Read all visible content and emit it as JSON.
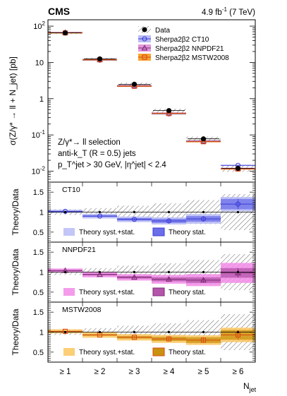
{
  "header": {
    "experiment": "CMS",
    "luminosity": "4.9 fb",
    "lumi_exp": "-1",
    "energy": "(7 TeV)"
  },
  "chart_data": [
    {
      "type": "line",
      "panel": "main",
      "yscale": "log",
      "ylim": [
        0.005,
        150
      ],
      "ylabel": "σ(Z/γ* → ll + N_jet) [pb]",
      "categories": [
        "≥ 1",
        "≥ 2",
        "≥ 3",
        "≥ 4",
        "≥ 5",
        "≥ 6"
      ],
      "y_ticks": [
        "10^-2",
        "10^-1",
        "1",
        "10",
        "10^2"
      ],
      "series": [
        {
          "name": "Data",
          "marker": "filled-circle",
          "color": "#000000",
          "values": [
            65,
            12.5,
            2.5,
            0.47,
            0.078,
            0.012
          ],
          "band_rel": [
            0.07,
            0.08,
            0.1,
            0.12,
            0.15,
            0.2
          ]
        },
        {
          "name": "Sherpa2β2 CT10",
          "marker": "open-circle",
          "color": "#3b3bd6",
          "band": "#b9bcf5",
          "values": [
            66,
            11.5,
            2.2,
            0.38,
            0.066,
            0.0145
          ]
        },
        {
          "name": "Sherpa2β2 NNPDF21",
          "marker": "open-triangle",
          "color": "#7d2a75",
          "band": "#e296dc",
          "values": [
            67,
            12.0,
            2.3,
            0.4,
            0.068,
            0.012
          ]
        },
        {
          "name": "Sherpa2β2 MSTW2008",
          "marker": "open-square",
          "color": "#d94a10",
          "band": "#f7a531",
          "values": [
            65,
            11.8,
            2.2,
            0.39,
            0.065,
            0.0115
          ]
        }
      ],
      "annotations": [
        "Z/γ*→ ll selection",
        "anti-k_T (R = 0.5) jets",
        "p_T^jet > 30 GeV, |η^jet| < 2.4"
      ]
    },
    {
      "type": "line",
      "panel": "ratio",
      "title": "CT10",
      "ylabel": "Theory/Data",
      "ylim": [
        0.25,
        1.75
      ],
      "y_ticks": [
        "0.5",
        "1",
        "1.5"
      ],
      "values": [
        1.02,
        0.9,
        0.82,
        0.78,
        0.83,
        1.2
      ],
      "syst_band": [
        0.04,
        0.06,
        0.07,
        0.09,
        0.12,
        0.18
      ],
      "stat_band": [
        0.01,
        0.02,
        0.03,
        0.05,
        0.07,
        0.13
      ],
      "data_band": [
        0.07,
        0.1,
        0.16,
        0.22,
        0.3,
        0.45
      ],
      "legend": [
        "Theory syst.+stat.",
        "Theory stat."
      ],
      "fill_color": "#b9bcf5",
      "stat_color": "#6a6ee8",
      "line_color": "#3b3bd6",
      "marker": "open-circle"
    },
    {
      "type": "line",
      "panel": "ratio",
      "title": "NNPDF21",
      "ylabel": "Theory/Data",
      "ylim": [
        0.25,
        1.75
      ],
      "y_ticks": [
        "0.5",
        "1",
        "1.5"
      ],
      "values": [
        1.04,
        0.94,
        0.87,
        0.82,
        0.8,
        0.98
      ],
      "syst_band": [
        0.05,
        0.07,
        0.08,
        0.11,
        0.15,
        0.25
      ],
      "stat_band": [
        0.01,
        0.02,
        0.03,
        0.05,
        0.07,
        0.12
      ],
      "data_band": [
        0.07,
        0.1,
        0.16,
        0.22,
        0.3,
        0.45
      ],
      "legend": [
        "Theory syst.+stat.",
        "Theory stat."
      ],
      "fill_color": "#f28be8",
      "stat_color": "#b455aa",
      "line_color": "#7d2a75",
      "marker": "open-triangle"
    },
    {
      "type": "line",
      "panel": "ratio",
      "title": "MSTW2008",
      "ylabel": "Theory/Data",
      "ylim": [
        0.25,
        1.75
      ],
      "y_ticks": [
        "0.5",
        "1",
        "1.5"
      ],
      "values": [
        1.02,
        0.93,
        0.87,
        0.83,
        0.8,
        0.93
      ],
      "syst_band": [
        0.05,
        0.07,
        0.08,
        0.1,
        0.12,
        0.18
      ],
      "stat_band": [
        0.01,
        0.02,
        0.03,
        0.05,
        0.07,
        0.12
      ],
      "data_band": [
        0.07,
        0.1,
        0.16,
        0.22,
        0.3,
        0.45
      ],
      "legend": [
        "Theory syst.+stat.",
        "Theory stat."
      ],
      "fill_color": "#fbc55e",
      "stat_color": "#c9920e",
      "line_color": "#d94a10",
      "marker": "open-square"
    }
  ],
  "x_axis": {
    "label": "N",
    "label_sub": "jet",
    "categories": [
      "≥ 1",
      "≥ 2",
      "≥ 3",
      "≥ 4",
      "≥ 5",
      "≥ 6"
    ]
  }
}
